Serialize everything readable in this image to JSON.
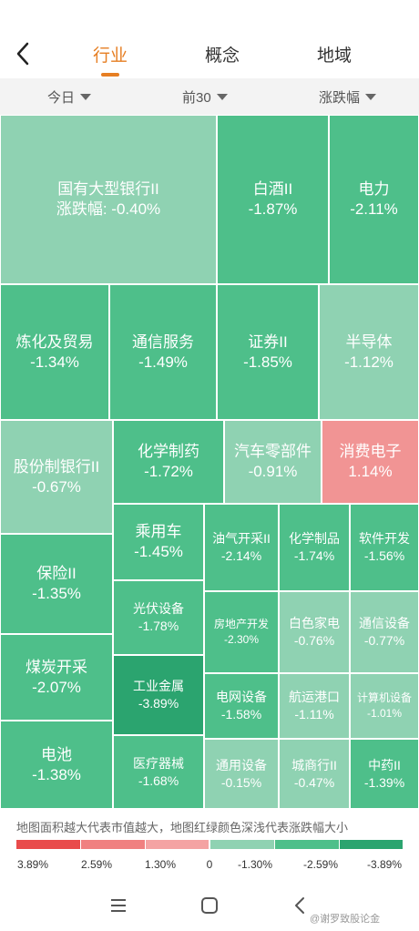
{
  "header": {
    "back_icon": "chevron-left-icon",
    "tabs": [
      {
        "label": "行业",
        "active": true
      },
      {
        "label": "概念",
        "active": false
      },
      {
        "label": "地域",
        "active": false
      }
    ],
    "accent_color": "#e67e22"
  },
  "filters": {
    "period": "今日",
    "range": "前30",
    "sort": "涨跌幅"
  },
  "treemap": {
    "cells": [
      {
        "name": "国有大型银行II",
        "value": "涨跌幅: -0.40%",
        "color": "#8fd2b2"
      },
      {
        "name": "白酒II",
        "value": "-1.87%",
        "color": "#4ebf8a"
      },
      {
        "name": "电力",
        "value": "-2.11%",
        "color": "#4ebf8a"
      },
      {
        "name": "炼化及贸易",
        "value": "-1.34%",
        "color": "#4ebf8a"
      },
      {
        "name": "通信服务",
        "value": "-1.49%",
        "color": "#4ebf8a"
      },
      {
        "name": "证券II",
        "value": "-1.85%",
        "color": "#4ebf8a"
      },
      {
        "name": "半导体",
        "value": "-1.12%",
        "color": "#8fd2b2"
      },
      {
        "name": "股份制银行II",
        "value": "-0.67%",
        "color": "#8fd2b2"
      },
      {
        "name": "化学制药",
        "value": "-1.72%",
        "color": "#4ebf8a"
      },
      {
        "name": "汽车零部件",
        "value": "-0.91%",
        "color": "#8fd2b2"
      },
      {
        "name": "消费电子",
        "value": "1.14%",
        "color": "#f19494"
      },
      {
        "name": "保险II",
        "value": "-1.35%",
        "color": "#4ebf8a"
      },
      {
        "name": "乘用车",
        "value": "-1.45%",
        "color": "#4ebf8a"
      },
      {
        "name": "油气开采II",
        "value": "-2.14%",
        "color": "#4ebf8a"
      },
      {
        "name": "化学制品",
        "value": "-1.74%",
        "color": "#4ebf8a"
      },
      {
        "name": "软件开发",
        "value": "-1.56%",
        "color": "#4ebf8a"
      },
      {
        "name": "光伏设备",
        "value": "-1.78%",
        "color": "#4ebf8a"
      },
      {
        "name": "房地产开发",
        "value": "-2.30%",
        "color": "#4ebf8a"
      },
      {
        "name": "白色家电",
        "value": "-0.76%",
        "color": "#8fd2b2"
      },
      {
        "name": "通信设备",
        "value": "-0.77%",
        "color": "#8fd2b2"
      },
      {
        "name": "煤炭开采",
        "value": "-2.07%",
        "color": "#4ebf8a"
      },
      {
        "name": "工业金属",
        "value": "-3.89%",
        "color": "#2ba46f"
      },
      {
        "name": "电网设备",
        "value": "-1.58%",
        "color": "#4ebf8a"
      },
      {
        "name": "航运港口",
        "value": "-1.11%",
        "color": "#8fd2b2"
      },
      {
        "name": "计算机设备",
        "value": "-1.01%",
        "color": "#8fd2b2"
      },
      {
        "name": "电池",
        "value": "-1.38%",
        "color": "#4ebf8a"
      },
      {
        "name": "医疗器械",
        "value": "-1.68%",
        "color": "#4ebf8a"
      },
      {
        "name": "通用设备",
        "value": "-0.15%",
        "color": "#8fd2b2"
      },
      {
        "name": "城商行II",
        "value": "-0.47%",
        "color": "#8fd2b2"
      },
      {
        "name": "中药II",
        "value": "-1.39%",
        "color": "#4ebf8a"
      }
    ]
  },
  "legend": {
    "note": "地图面积越大代表市值越大，地图红绿颜色深浅代表涨跌幅大小",
    "segments": [
      "#e94b4b",
      "#f08080",
      "#f4a3a3",
      "#8fd2b2",
      "#4ebf8a",
      "#2ba46f"
    ],
    "ticks": [
      "3.89%",
      "2.59%",
      "1.30%",
      "0",
      "-1.30%",
      "-2.59%",
      "-3.89%"
    ]
  },
  "navbar": {
    "icons": [
      "menu-icon",
      "home-square-icon",
      "back-chevron-icon"
    ]
  },
  "watermark": "@谢罗致股论金"
}
